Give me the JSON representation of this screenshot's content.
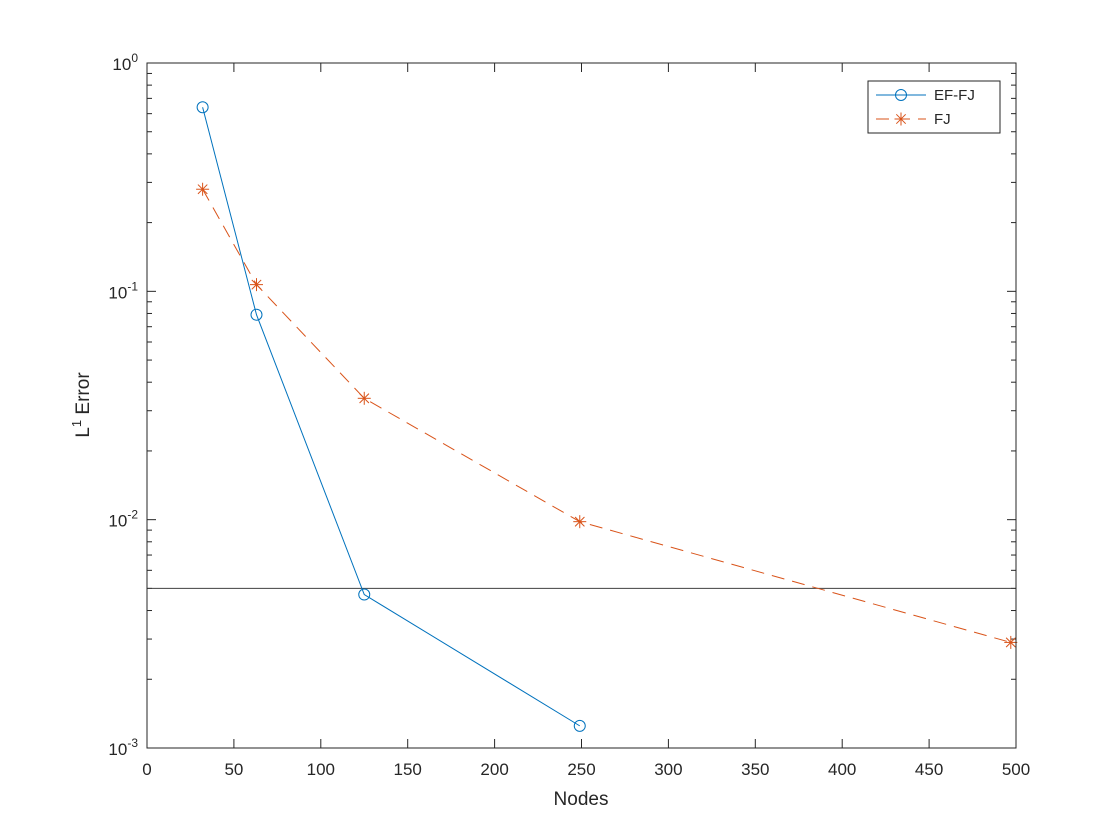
{
  "chart_data": {
    "type": "line",
    "title": "",
    "xlabel": "Nodes",
    "ylabel": {
      "base": "L",
      "sup": "1",
      "rest": " Error"
    },
    "xlim": [
      0,
      500
    ],
    "ylim": [
      0.001,
      1
    ],
    "yscale": "log",
    "grid": false,
    "legend_position": "top-right",
    "x_ticks": [
      {
        "value": 0,
        "label": "0"
      },
      {
        "value": 50,
        "label": "50"
      },
      {
        "value": 100,
        "label": "100"
      },
      {
        "value": 150,
        "label": "150"
      },
      {
        "value": 200,
        "label": "200"
      },
      {
        "value": 250,
        "label": "250"
      },
      {
        "value": 300,
        "label": "300"
      },
      {
        "value": 350,
        "label": "350"
      },
      {
        "value": 400,
        "label": "400"
      },
      {
        "value": 450,
        "label": "450"
      },
      {
        "value": 500,
        "label": "500"
      }
    ],
    "y_ticks": [
      {
        "value": 0.001,
        "base": "10",
        "exp": "-3"
      },
      {
        "value": 0.01,
        "base": "10",
        "exp": "-2"
      },
      {
        "value": 0.1,
        "base": "10",
        "exp": "-1"
      },
      {
        "value": 1,
        "base": "10",
        "exp": "0"
      }
    ],
    "reference_line": {
      "y": 0.005,
      "color": "#404040"
    },
    "series": [
      {
        "name": "EF-FJ",
        "color": "#0072BD",
        "marker": "circle",
        "line_style": "solid",
        "x": [
          32,
          63,
          125,
          249
        ],
        "y": [
          0.64,
          0.079,
          0.0047,
          0.00125
        ]
      },
      {
        "name": "FJ",
        "color": "#D95319",
        "marker": "asterisk",
        "line_style": "dashed",
        "x": [
          32,
          63,
          125,
          249,
          497
        ],
        "y": [
          0.28,
          0.107,
          0.034,
          0.0098,
          0.0029
        ]
      }
    ]
  }
}
